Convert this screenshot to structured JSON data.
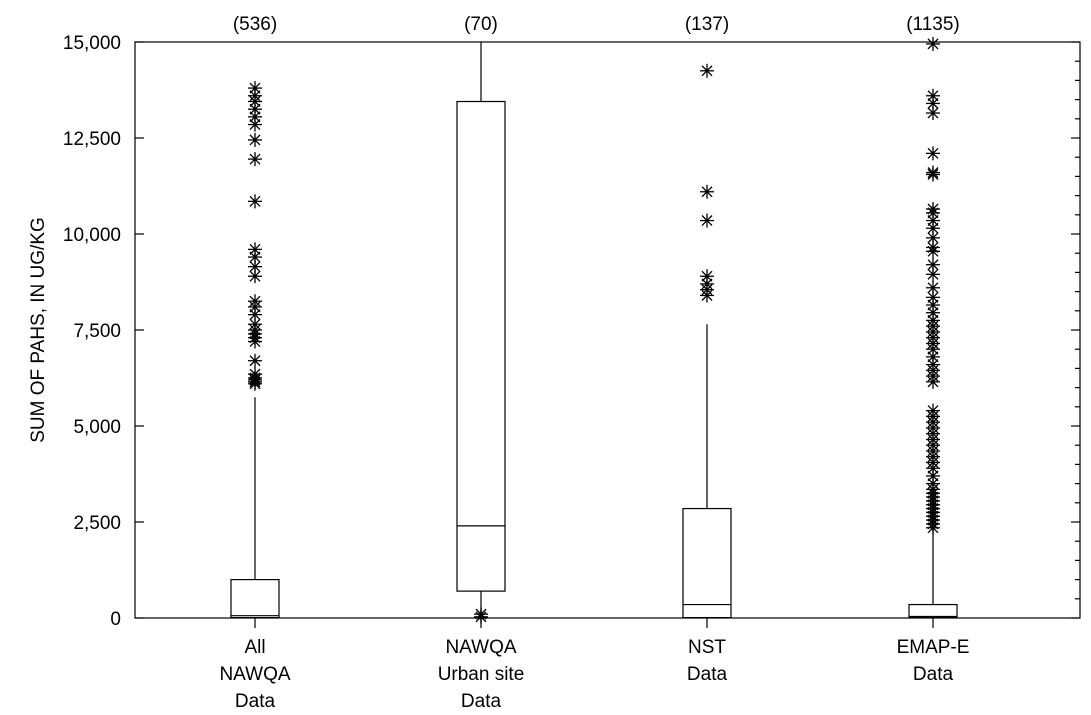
{
  "chart_data": {
    "type": "box",
    "ylabel": "SUM OF PAHS, IN UG/KG",
    "ylim": [
      0,
      15000
    ],
    "yticks": [
      0,
      2500,
      5000,
      7500,
      10000,
      12500,
      15000
    ],
    "ytick_labels": [
      "0",
      "2,500",
      "5,000",
      "7,500",
      "10,000",
      "12,500",
      "15,000"
    ],
    "grid": false,
    "categories": [
      {
        "label_lines": [
          "All",
          "NAWQA",
          "Data"
        ],
        "count": "(536)",
        "box": {
          "whisker_low": 0,
          "q1": 10,
          "median": 60,
          "q3": 1000,
          "whisker_high": 5750
        },
        "outliers": [
          6100,
          6150,
          6200,
          6250,
          6350,
          6700,
          7200,
          7300,
          7400,
          7500,
          7650,
          7900,
          8100,
          8250,
          8900,
          9150,
          9400,
          9600,
          10850,
          11950,
          12450,
          12850,
          13050,
          13250,
          13450,
          13600,
          13800
        ]
      },
      {
        "label_lines": [
          "NAWQA",
          "Urban site",
          "Data"
        ],
        "count": "(70)",
        "box": {
          "whisker_low": 0,
          "q1": 700,
          "median": 2400,
          "q3": 13450,
          "whisker_high": 15000
        },
        "outliers": [
          30,
          100
        ]
      },
      {
        "label_lines": [
          "NST",
          "Data"
        ],
        "count": "(137)",
        "box": {
          "whisker_low": 0,
          "q1": 10,
          "median": 350,
          "q3": 2850,
          "whisker_high": 7650
        },
        "outliers": [
          8400,
          8550,
          8700,
          8900,
          10350,
          11100,
          14250
        ]
      },
      {
        "label_lines": [
          "EMAP-E",
          "Data"
        ],
        "count": "(1135)",
        "box": {
          "whisker_low": 0,
          "q1": 10,
          "median": 40,
          "q3": 350,
          "whisker_high": 2300
        },
        "outliers": [
          2350,
          2450,
          2550,
          2650,
          2750,
          2850,
          2950,
          3050,
          3150,
          3250,
          3350,
          3500,
          3700,
          3900,
          4050,
          4200,
          4350,
          4500,
          4650,
          4800,
          4950,
          5100,
          5250,
          5400,
          6150,
          6300,
          6450,
          6600,
          6800,
          7000,
          7150,
          7300,
          7450,
          7600,
          7750,
          7950,
          8150,
          8350,
          8600,
          8950,
          9200,
          9550,
          9650,
          9900,
          10150,
          10350,
          10550,
          10650,
          11550,
          11600,
          12100,
          13150,
          13400,
          13600,
          14950
        ]
      }
    ]
  }
}
